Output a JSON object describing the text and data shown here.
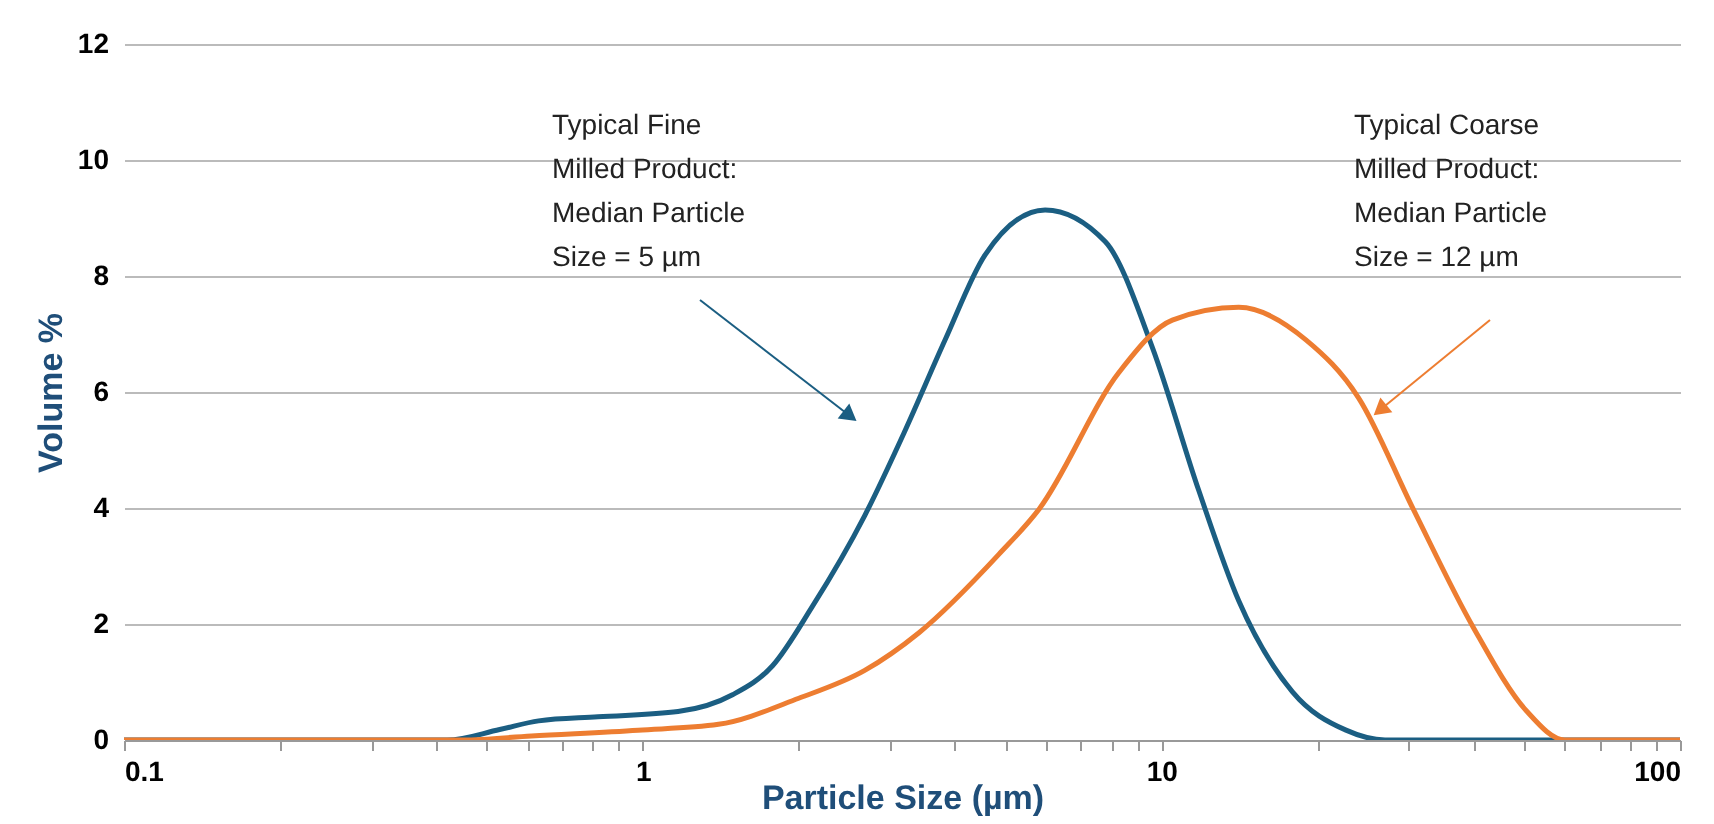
{
  "chart_data": {
    "type": "line",
    "xlabel": "Particle Size (µm)",
    "ylabel": "Volume %",
    "xlim": [
      0.1,
      100
    ],
    "ylim": [
      0,
      12
    ],
    "xticks": [
      0.1,
      {
        "value": 0.2,
        "label": null
      },
      {
        "value": 0.3,
        "label": null
      },
      {
        "value": 0.4,
        "label": null
      },
      {
        "value": 0.5,
        "label": null
      },
      {
        "value": 0.6,
        "label": null
      },
      {
        "value": 0.7,
        "label": null
      },
      {
        "value": 0.8,
        "label": null
      },
      {
        "value": 0.9,
        "label": null
      },
      1,
      {
        "value": 2,
        "label": null
      },
      {
        "value": 3,
        "label": null
      },
      {
        "value": 4,
        "label": null
      },
      {
        "value": 5,
        "label": null
      },
      {
        "value": 6,
        "label": null
      },
      {
        "value": 7,
        "label": null
      },
      {
        "value": 8,
        "label": null
      },
      {
        "value": 9,
        "label": null
      },
      10,
      {
        "value": 20,
        "label": null
      },
      {
        "value": 30,
        "label": null
      },
      {
        "value": 40,
        "label": null
      },
      {
        "value": 50,
        "label": null
      },
      {
        "value": 60,
        "label": null
      },
      {
        "value": 70,
        "label": null
      },
      {
        "value": 80,
        "label": null
      },
      {
        "value": 90,
        "label": null
      },
      100
    ],
    "yticks": [
      0,
      2,
      4,
      6,
      8,
      10,
      12
    ],
    "log": "x",
    "grid": "y",
    "legend": false,
    "marker": "none",
    "line_style": "solid",
    "series": [
      {
        "color": "#1b5e82",
        "x": [
          0.1,
          0.3,
          0.42,
          0.53,
          0.63,
          0.82,
          1.17,
          1.49,
          1.78,
          2.12,
          2.68,
          3.2,
          3.83,
          4.57,
          5.97,
          7.8,
          9.6,
          11.8,
          14.1,
          17.9,
          22.7,
          27,
          50,
          100
        ],
        "values": [
          0,
          0,
          0,
          0.18,
          0.33,
          0.4,
          0.49,
          0.78,
          1.28,
          2.29,
          3.87,
          5.32,
          6.9,
          8.36,
          9.14,
          8.59,
          6.78,
          4.31,
          2.4,
          0.83,
          0.17,
          0,
          0,
          0
        ]
      },
      {
        "color": "#ed7d31",
        "x": [
          0.1,
          0.3,
          0.45,
          0.61,
          0.98,
          1.4,
          2.0,
          2.68,
          3.41,
          4.86,
          5.81,
          8.29,
          10.5,
          14.1,
          19,
          24,
          30.6,
          39.9,
          50.6,
          60,
          100
        ],
        "values": [
          0,
          0,
          0,
          0.07,
          0.17,
          0.27,
          0.72,
          1.2,
          1.85,
          3.2,
          3.98,
          6.34,
          7.24,
          7.46,
          6.9,
          5.9,
          3.98,
          1.95,
          0.5,
          0,
          0
        ]
      }
    ],
    "annotations": [
      "Typical Fine\nMilled Product:\nMedian Particle\nSize = 5 µm",
      "Typical Coarse\nMilled Product:\nMedian Particle\nSize = 12 µm"
    ]
  }
}
